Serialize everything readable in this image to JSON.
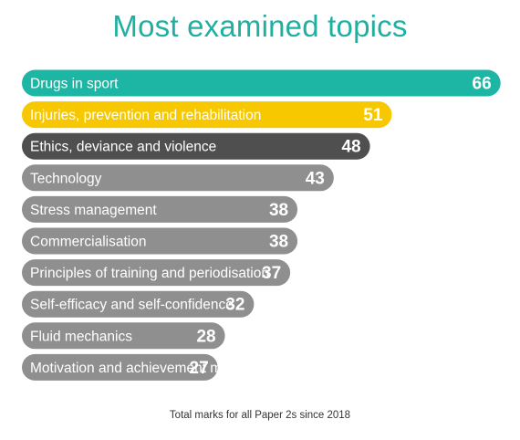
{
  "chart_data": {
    "type": "bar",
    "orientation": "horizontal",
    "title": "Most examined topics",
    "footnote": "Total marks for all Paper 2s since 2018",
    "categories": [
      "Drugs in sport",
      "Injuries, prevention and rehabilitation",
      "Ethics, deviance and violence",
      "Technology",
      "Stress management",
      "Commercialisation",
      "Principles of training and periodisation",
      "Self-efficacy and self-confidence",
      "Fluid mechanics",
      "Motivation and achievement motivation"
    ],
    "values": [
      66,
      51,
      48,
      43,
      38,
      38,
      37,
      32,
      28,
      27
    ],
    "colors": [
      "#1db5a4",
      "#f7c800",
      "#4f4f4f",
      "#8f8f8f",
      "#8f8f8f",
      "#8f8f8f",
      "#8f8f8f",
      "#8f8f8f",
      "#8f8f8f",
      "#8f8f8f"
    ],
    "title_color": "#1fb0a2"
  }
}
